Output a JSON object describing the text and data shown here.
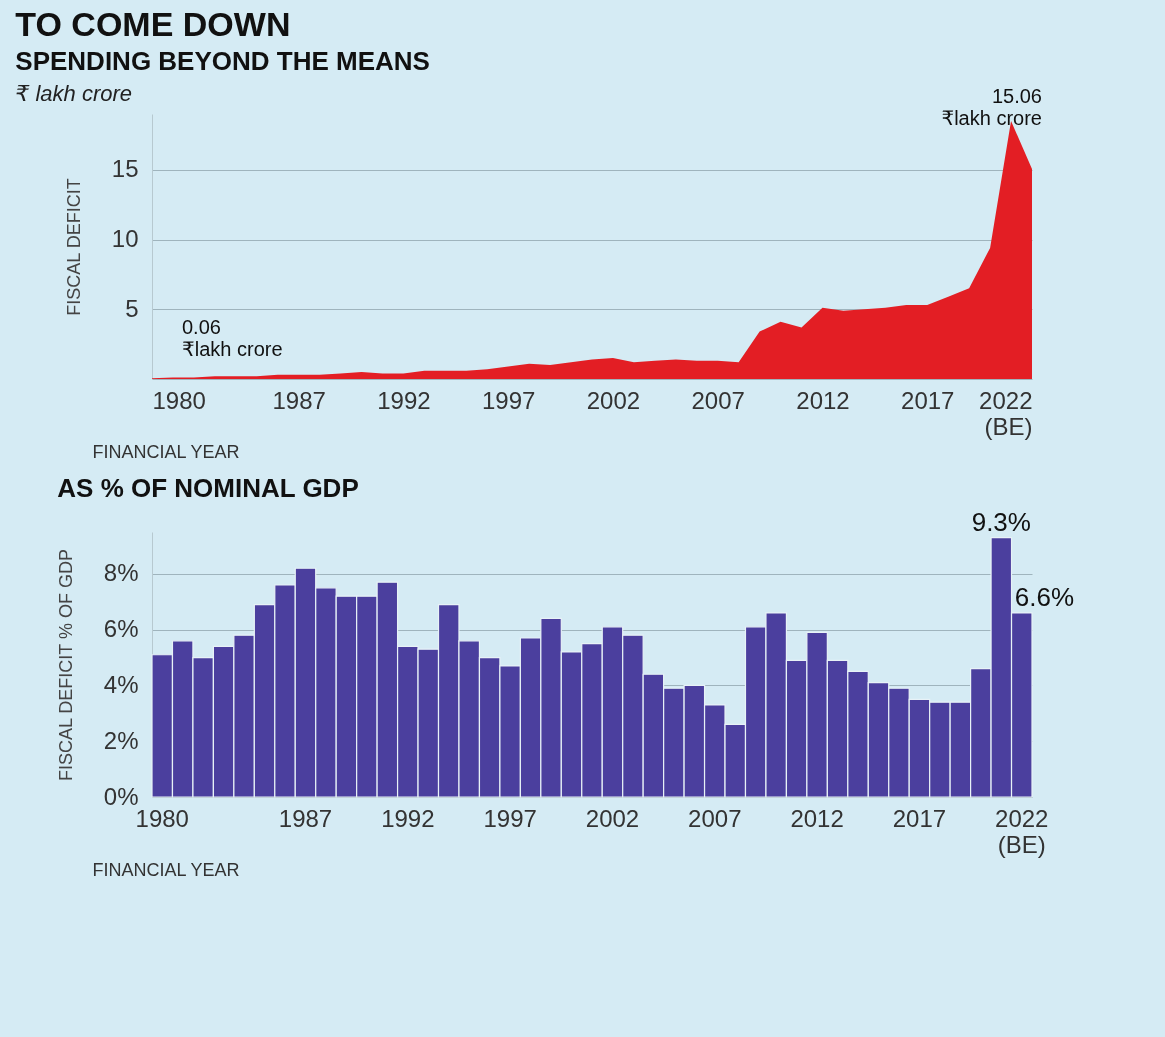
{
  "chart_data": [
    {
      "type": "area",
      "title": "TO COME DOWN",
      "subtitle": "SPENDING BEYOND THE MEANS",
      "ylabel": "FISCAL DEFICIT",
      "xlabel": "FINANCIAL YEAR",
      "annotations": [
        "₹ lakh crore",
        {
          "text": "0.06\n₹lakh crore",
          "x": 1980,
          "y": 0.06
        },
        {
          "text": "15.06\n₹lakh crore",
          "x": 2022,
          "y": 15.06
        }
      ],
      "x": [
        1980,
        1981,
        1982,
        1983,
        1984,
        1985,
        1986,
        1987,
        1988,
        1989,
        1990,
        1991,
        1992,
        1993,
        1994,
        1995,
        1996,
        1997,
        1998,
        1999,
        2000,
        2001,
        2002,
        2003,
        2004,
        2005,
        2006,
        2007,
        2008,
        2009,
        2010,
        2011,
        2012,
        2013,
        2014,
        2015,
        2016,
        2017,
        2018,
        2019,
        2020,
        2021,
        2022
      ],
      "series": [
        {
          "color": "#e31e24",
          "values": [
            0.06,
            0.1,
            0.1,
            0.2,
            0.2,
            0.2,
            0.3,
            0.3,
            0.3,
            0.4,
            0.5,
            0.4,
            0.4,
            0.6,
            0.6,
            0.6,
            0.7,
            0.9,
            1.1,
            1.0,
            1.2,
            1.4,
            1.5,
            1.2,
            1.3,
            1.4,
            1.3,
            1.3,
            1.2,
            3.4,
            4.1,
            3.7,
            5.1,
            4.9,
            5.0,
            5.1,
            5.3,
            5.3,
            5.9,
            6.5,
            9.4,
            18.5,
            15.06
          ]
        }
      ],
      "xlim": [
        1980,
        2022
      ],
      "xticks": [
        1980,
        1987,
        1992,
        1997,
        2002,
        2007,
        2012,
        2017,
        {
          "value": 2022,
          "label": "2022\n(BE)"
        }
      ],
      "ylim": [
        0,
        19
      ],
      "yticks": [
        5,
        10,
        15
      ],
      "grid": "y"
    },
    {
      "type": "bar",
      "title": "AS % OF NOMINAL GDP",
      "ylabel": "FISCAL DEFICIT % OF GDP",
      "xlabel": "FINANCIAL YEAR",
      "categories": [
        "1980",
        null,
        null,
        null,
        null,
        null,
        null,
        "1987",
        null,
        null,
        null,
        null,
        "1992",
        null,
        null,
        null,
        null,
        "1997",
        null,
        null,
        null,
        null,
        "2002",
        null,
        null,
        null,
        null,
        "2007",
        null,
        null,
        null,
        null,
        "2012",
        null,
        null,
        null,
        null,
        "2017",
        null,
        null,
        null,
        null,
        "2022\n(BE)"
      ],
      "series": [
        {
          "color": "#4b3f9e",
          "values": [
            5.1,
            5.6,
            5.0,
            5.4,
            5.8,
            6.9,
            7.6,
            8.2,
            7.5,
            7.2,
            7.2,
            7.7,
            5.4,
            5.3,
            6.9,
            5.6,
            5.0,
            4.7,
            5.7,
            6.4,
            5.2,
            5.5,
            6.1,
            5.8,
            4.4,
            3.9,
            4.0,
            3.3,
            2.6,
            6.1,
            6.6,
            4.9,
            5.9,
            4.9,
            4.5,
            4.1,
            3.9,
            3.5,
            3.4,
            3.4,
            4.6,
            9.3,
            6.6
          ],
          "value_labels": [
            null,
            null,
            null,
            null,
            null,
            null,
            null,
            null,
            null,
            null,
            null,
            null,
            null,
            null,
            null,
            null,
            null,
            null,
            null,
            null,
            null,
            null,
            null,
            null,
            null,
            null,
            null,
            null,
            null,
            null,
            null,
            null,
            null,
            null,
            null,
            null,
            null,
            null,
            null,
            null,
            null,
            "9.3%",
            "6.6%"
          ]
        }
      ],
      "ylim": [
        0,
        9.5
      ],
      "yticks": [
        {
          "value": 0,
          "label": "0%"
        },
        {
          "value": 2,
          "label": "2%"
        },
        {
          "value": 4,
          "label": "4%"
        },
        {
          "value": 6,
          "label": "6%"
        },
        {
          "value": 8,
          "label": "8%"
        }
      ],
      "grid": "y"
    }
  ]
}
